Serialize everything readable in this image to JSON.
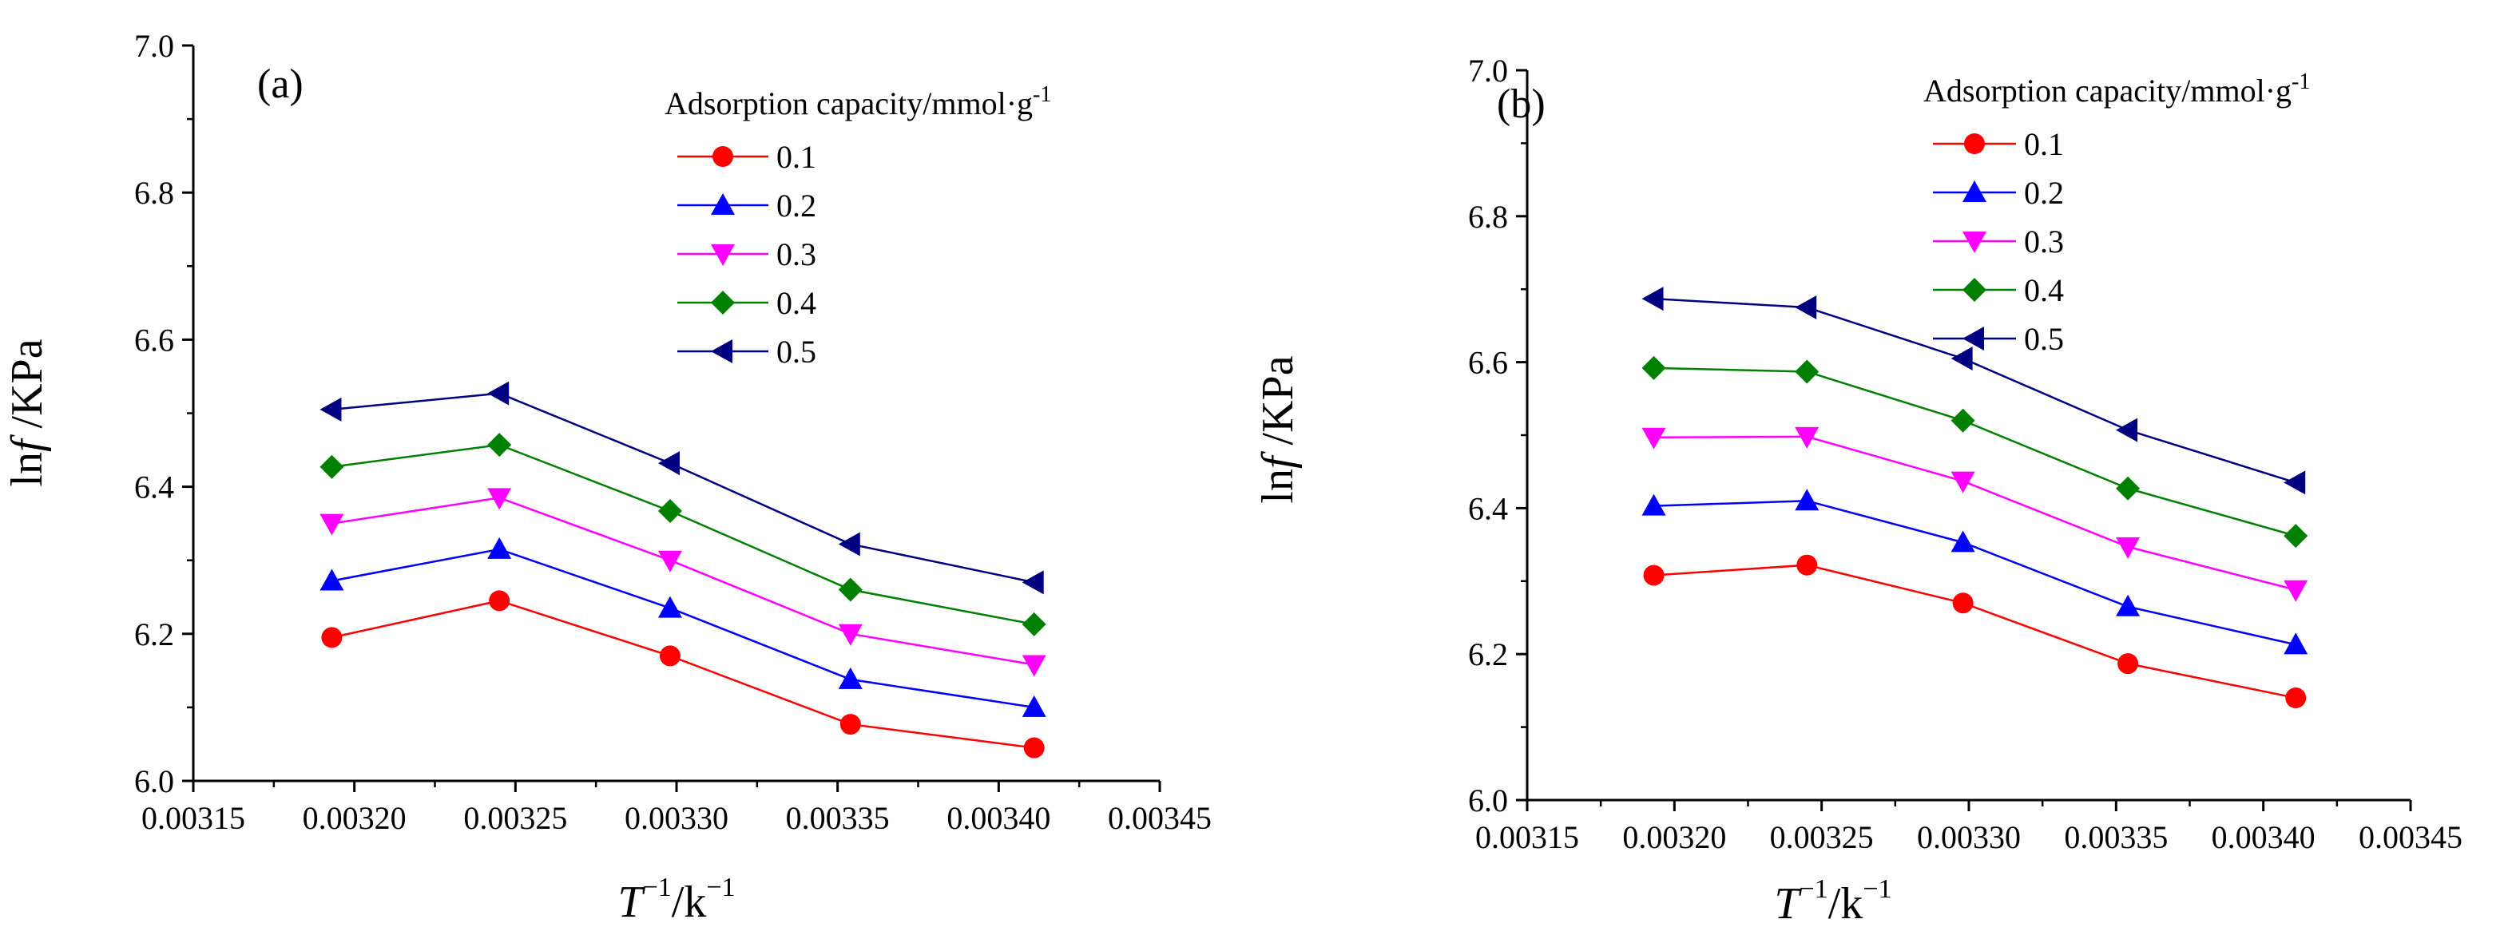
{
  "chart_data": [
    {
      "type": "line",
      "panel_label": "(a)",
      "ylabel": "lnf /KPa",
      "xlabel": "T^-1/k^-1",
      "xlim": [
        0.00315,
        0.00345
      ],
      "ylim": [
        6.0,
        7.0
      ],
      "xticks": [
        "0.00315",
        "0.00320",
        "0.00325",
        "0.00330",
        "0.00335",
        "0.00340",
        "0.00345"
      ],
      "yticks": [
        "6.0",
        "6.2",
        "6.4",
        "6.6",
        "6.8",
        "7.0"
      ],
      "x": [
        0.003193,
        0.003245,
        0.003298,
        0.003354,
        0.003411
      ],
      "legend_title": "Adsorption capacity/mmol·g-1",
      "legend_position": "top-right",
      "series": [
        {
          "name": "0.1",
          "color": "#ff0000",
          "marker": "circle",
          "values": [
            6.195,
            6.245,
            6.17,
            6.077,
            6.045
          ]
        },
        {
          "name": "0.2",
          "color": "#0000ff",
          "marker": "triangle-up",
          "values": [
            6.272,
            6.315,
            6.235,
            6.138,
            6.1
          ]
        },
        {
          "name": "0.3",
          "color": "#ff00ff",
          "marker": "triangle-down",
          "values": [
            6.35,
            6.385,
            6.3,
            6.2,
            6.158
          ]
        },
        {
          "name": "0.4",
          "color": "#008000",
          "marker": "diamond",
          "values": [
            6.427,
            6.457,
            6.367,
            6.26,
            6.213
          ]
        },
        {
          "name": "0.5",
          "color": "#000080",
          "marker": "triangle-left",
          "values": [
            6.505,
            6.527,
            6.432,
            6.322,
            6.27
          ]
        }
      ]
    },
    {
      "type": "line",
      "panel_label": "(b)",
      "ylabel": "lnf /KPa",
      "xlabel": "T^-1/k^-1",
      "xlim": [
        0.00315,
        0.00345
      ],
      "ylim": [
        6.0,
        7.0
      ],
      "xticks": [
        "0.00315",
        "0.00320",
        "0.00325",
        "0.00330",
        "0.00335",
        "0.00340",
        "0.00345"
      ],
      "yticks": [
        "6.0",
        "6.2",
        "6.4",
        "6.6",
        "6.8",
        "7.0"
      ],
      "x": [
        0.003193,
        0.003245,
        0.003298,
        0.003354,
        0.003411
      ],
      "legend_title": "Adsorption capacity/mmol·g-1",
      "legend_position": "top-right",
      "series": [
        {
          "name": "0.1",
          "color": "#ff0000",
          "marker": "circle",
          "values": [
            6.308,
            6.322,
            6.27,
            6.187,
            6.14
          ]
        },
        {
          "name": "0.2",
          "color": "#0000ff",
          "marker": "triangle-up",
          "values": [
            6.403,
            6.41,
            6.353,
            6.265,
            6.213
          ]
        },
        {
          "name": "0.3",
          "color": "#ff00ff",
          "marker": "triangle-down",
          "values": [
            6.497,
            6.498,
            6.437,
            6.347,
            6.288
          ]
        },
        {
          "name": "0.4",
          "color": "#008000",
          "marker": "diamond",
          "values": [
            6.592,
            6.587,
            6.52,
            6.427,
            6.362
          ]
        },
        {
          "name": "0.5",
          "color": "#000080",
          "marker": "triangle-left",
          "values": [
            6.687,
            6.675,
            6.605,
            6.507,
            6.435
          ]
        }
      ]
    }
  ],
  "labels": {
    "ylabel_main": "ln",
    "ylabel_italic": "f",
    "ylabel_unit": " /KPa",
    "xlabel_T": "T",
    "xlabel_sup1": "−1",
    "xlabel_unit": "/k",
    "xlabel_sup2": "−1",
    "legend_title_main": "Adsorption capacity/mmol·g",
    "legend_title_sup": "-1"
  }
}
